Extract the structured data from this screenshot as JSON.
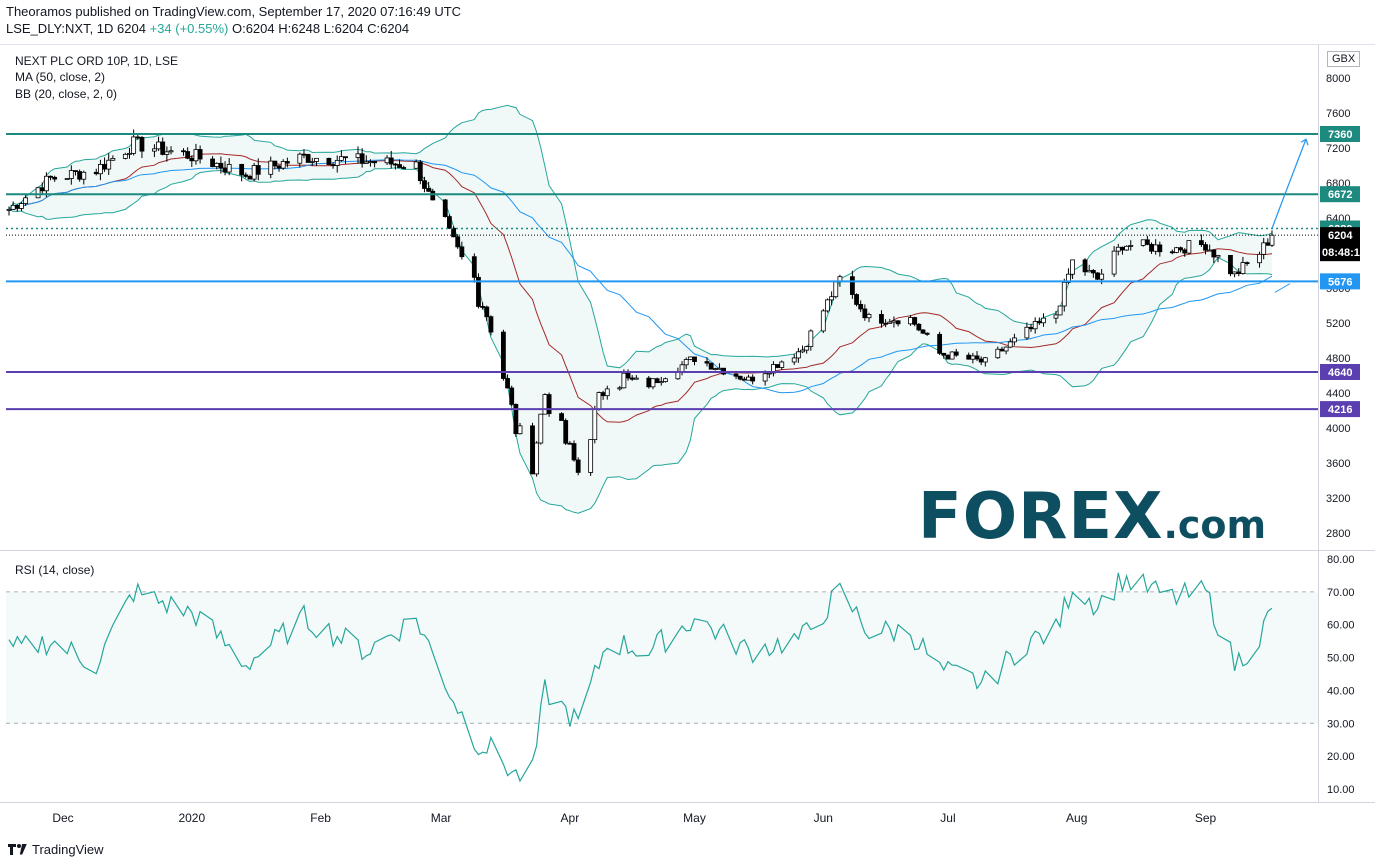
{
  "header": {
    "line1": "Theoramos published on TradingView.com, September 17, 2020 07:16:49 UTC",
    "line2_prefix": "LSE_DLY:NXT, 1D 6204 ",
    "line2_change": "+34 (+0.55%) ",
    "line2_ohlc": "O:6204 H:6248 L:6204 C:6204",
    "symbol_title": "NEXT PLC ORD 10P, 1D, LSE",
    "ma_label": "MA (50, close, 2)",
    "bb_label": "BB (20, close, 2, 0)",
    "rsi_label": "RSI (14, close)",
    "currency": "GBX"
  },
  "footer": {
    "brand": "TradingView"
  },
  "watermark": {
    "main": "FOREX",
    "suffix": ".com"
  },
  "colors": {
    "teal_level": "#1d8a80",
    "blue_level": "#2196f3",
    "purple_level": "#5b3fb0",
    "ma": "#2196f3",
    "bb": "#26a69a",
    "bb_basis": "#a52a2a",
    "rsi": "#26a69a",
    "forex_dark": "#0d4f61",
    "forex_green": "#27b67e"
  },
  "chart_data": [
    {
      "type": "candlestick",
      "title": "NEXT PLC ORD 10P, 1D, LSE",
      "ylim": [
        2600,
        8200
      ],
      "y_ticks": [
        2800,
        3200,
        3600,
        4000,
        4400,
        4800,
        5200,
        5600,
        6000,
        6400,
        6800,
        7200,
        7600,
        8000
      ],
      "x_labels": [
        "Dec",
        "2020",
        "Feb",
        "Mar",
        "Apr",
        "May",
        "Jun",
        "Jul",
        "Aug",
        "Sep"
      ],
      "close_anchors": [
        [
          "2019-11-18",
          6500
        ],
        [
          "2019-11-28",
          6850
        ],
        [
          "2019-12-09",
          6950
        ],
        [
          "2019-12-18",
          7250
        ],
        [
          "2020-01-02",
          7100
        ],
        [
          "2020-01-14",
          6900
        ],
        [
          "2020-01-28",
          7100
        ],
        [
          "2020-02-12",
          7050
        ],
        [
          "2020-02-24",
          7000
        ],
        [
          "2020-03-03",
          6100
        ],
        [
          "2020-03-09",
          5700
        ],
        [
          "2020-03-13",
          5200
        ],
        [
          "2020-03-19",
          4000
        ],
        [
          "2020-03-23",
          3600
        ],
        [
          "2020-03-26",
          4400
        ],
        [
          "2020-04-03",
          3500
        ],
        [
          "2020-04-10",
          4600
        ],
        [
          "2020-04-20",
          4500
        ],
        [
          "2020-05-01",
          4800
        ],
        [
          "2020-05-14",
          4550
        ],
        [
          "2020-05-27",
          4900
        ],
        [
          "2020-06-05",
          5700
        ],
        [
          "2020-06-12",
          5250
        ],
        [
          "2020-06-22",
          5250
        ],
        [
          "2020-06-29",
          4850
        ],
        [
          "2020-07-10",
          4750
        ],
        [
          "2020-07-20",
          5100
        ],
        [
          "2020-07-27",
          5300
        ],
        [
          "2020-07-31",
          5900
        ],
        [
          "2020-08-06",
          5700
        ],
        [
          "2020-08-12",
          6100
        ],
        [
          "2020-08-24",
          6050
        ],
        [
          "2020-09-01",
          6100
        ],
        [
          "2020-09-08",
          5750
        ],
        [
          "2020-09-14",
          6000
        ],
        [
          "2020-09-17",
          6204
        ]
      ],
      "levels": [
        {
          "value": 7360,
          "label": "7360",
          "color": "#1d8a80"
        },
        {
          "value": 6672,
          "label": "6672",
          "color": "#1d8a80"
        },
        {
          "value": 6280,
          "label": "6280",
          "color": "#1d8a80",
          "style": "dotted"
        },
        {
          "value": 5676,
          "label": "5676",
          "color": "#2196f3"
        },
        {
          "value": 4640,
          "label": "4640",
          "color": "#5b3fb0"
        },
        {
          "value": 4216,
          "label": "4216",
          "color": "#5b3fb0"
        }
      ],
      "last_price": {
        "value": 6204,
        "label": "6204",
        "countdown": "08:48:1"
      },
      "projection": {
        "from": [
          "2020-09-17",
          6280
        ],
        "to": [
          "2020-09-23",
          7300
        ]
      },
      "indicators": [
        "MA (50, close, 2)",
        "BB (20, close, 2, 0)"
      ]
    },
    {
      "type": "line",
      "title": "RSI (14, close)",
      "ylim": [
        5,
        82
      ],
      "y_ticks": [
        10,
        20,
        30,
        40,
        50,
        60,
        70,
        80
      ],
      "bands": [
        30,
        70
      ],
      "series": [
        {
          "values_points": [
            [
              "2019-11-18",
              52
            ],
            [
              "2019-11-28",
              55
            ],
            [
              "2019-12-09",
              48
            ],
            [
              "2019-12-18",
              70
            ],
            [
              "2020-01-02",
              63
            ],
            [
              "2020-01-14",
              48
            ],
            [
              "2020-01-28",
              62
            ],
            [
              "2020-02-12",
              52
            ],
            [
              "2020-02-24",
              62
            ],
            [
              "2020-03-03",
              40
            ],
            [
              "2020-03-09",
              25
            ],
            [
              "2020-03-13",
              22
            ],
            [
              "2020-03-19",
              14
            ],
            [
              "2020-03-23",
              15
            ],
            [
              "2020-03-26",
              40
            ],
            [
              "2020-04-03",
              30
            ],
            [
              "2020-04-10",
              55
            ],
            [
              "2020-04-20",
              52
            ],
            [
              "2020-05-01",
              62
            ],
            [
              "2020-05-14",
              52
            ],
            [
              "2020-05-27",
              56
            ],
            [
              "2020-06-05",
              70
            ],
            [
              "2020-06-12",
              58
            ],
            [
              "2020-06-22",
              58
            ],
            [
              "2020-06-29",
              46
            ],
            [
              "2020-07-10",
              42
            ],
            [
              "2020-07-20",
              55
            ],
            [
              "2020-07-27",
              58
            ],
            [
              "2020-07-31",
              72
            ],
            [
              "2020-08-06",
              66
            ],
            [
              "2020-08-12",
              74
            ],
            [
              "2020-08-24",
              68
            ],
            [
              "2020-09-01",
              70
            ],
            [
              "2020-09-08",
              48
            ],
            [
              "2020-09-14",
              56
            ],
            [
              "2020-09-17",
              65
            ]
          ]
        }
      ]
    }
  ]
}
